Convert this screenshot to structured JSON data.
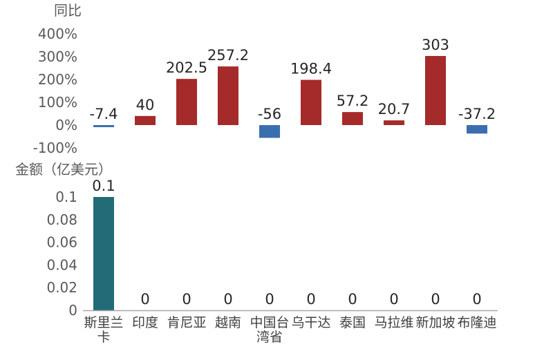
{
  "chart_data": [
    {
      "type": "bar",
      "ylabel": "同比",
      "ytick_labels": [
        "400%",
        "300%",
        "200%",
        "100%",
        "0%",
        "-100%"
      ],
      "ylim": [
        -100,
        400
      ],
      "categories": [
        "斯里兰卡",
        "印度",
        "肯尼亚",
        "越南",
        "中国台湾省",
        "乌干达",
        "泰国",
        "马拉维",
        "新加坡",
        "布隆迪"
      ],
      "values": [
        -7.4,
        40,
        202.5,
        257.2,
        -56,
        198.4,
        57.2,
        20.7,
        303,
        -37.2
      ],
      "value_labels": [
        "-7.4",
        "40",
        "202.5",
        "257.2",
        "-56",
        "198.4",
        "57.2",
        "20.7",
        "303",
        "-37.2"
      ],
      "colors": {
        "positive": "#A52A2A",
        "negative": "#3A6EAF"
      }
    },
    {
      "type": "bar",
      "ylabel": "金额（亿美元）",
      "ytick_labels": [
        "0.1",
        "0.08",
        "0.06",
        "0.04",
        "0.02",
        "0"
      ],
      "ylim": [
        0,
        0.1
      ],
      "categories": [
        "斯里兰卡",
        "印度",
        "肯尼亚",
        "越南",
        "中国台湾省",
        "乌干达",
        "泰国",
        "马拉维",
        "新加坡",
        "布隆迪"
      ],
      "category_label_lines": [
        [
          "斯里兰",
          "卡"
        ],
        [
          "印度"
        ],
        [
          "肯尼亚"
        ],
        [
          "越南"
        ],
        [
          "中国台",
          "湾省"
        ],
        [
          "乌干达"
        ],
        [
          "泰国"
        ],
        [
          "马拉维"
        ],
        [
          "新加坡"
        ],
        [
          "布隆迪"
        ]
      ],
      "values": [
        0.1,
        0,
        0,
        0,
        0,
        0,
        0,
        0,
        0,
        0
      ],
      "value_labels": [
        "0.1",
        "0",
        "0",
        "0",
        "0",
        "0",
        "0",
        "0",
        "0",
        "0"
      ],
      "colors": {
        "bar": "#246B78",
        "axis": "#A6A6A6"
      }
    }
  ]
}
